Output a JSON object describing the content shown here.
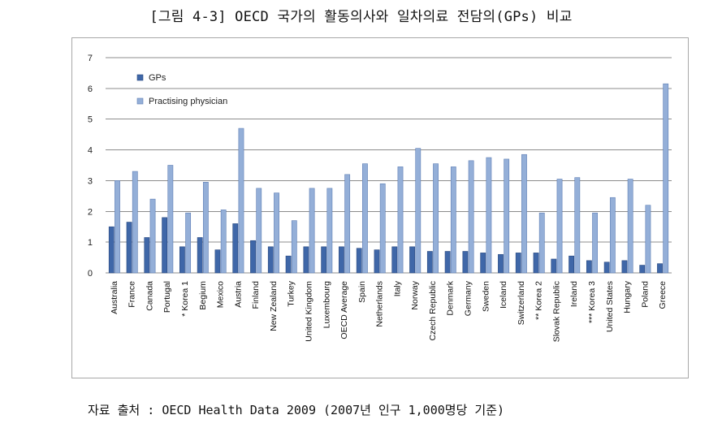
{
  "title": "[그림 4-3] OECD 국가의 활동의사와 일차의료 전담의(GPs) 비교",
  "source": "자료 출처 : OECD Health Data 2009 (2007년 인구 1,000명당 기준)",
  "colors": {
    "gps": "#3f67a8",
    "gps_stroke": "#2a4a80",
    "practising": "#94afd8",
    "practising_stroke": "#5f7fb5",
    "grid": "#8c8c8c",
    "frame": "#a8a8a8"
  },
  "chart_data": {
    "type": "bar",
    "title": "",
    "xlabel": "",
    "ylabel": "",
    "ylim": [
      0,
      7
    ],
    "yticks": [
      0,
      1,
      2,
      3,
      4,
      5,
      6,
      7
    ],
    "grid": true,
    "legend_position": "top-left",
    "categories": [
      "Australia",
      "France",
      "Canada",
      "Portugal",
      "* Korea 1",
      "Begium",
      "Mexico",
      "Austria",
      "Finland",
      "New Zealand",
      "Turkey",
      "United Kingdom",
      "Luxembourg",
      "OECD Average",
      "Spain",
      "Netherlands",
      "Italy",
      "Norway",
      "Czech Republic",
      "Denmark",
      "Germany",
      "Sweden",
      "Iceland",
      "Switzerland",
      "** Korea 2",
      "Slovak Republic",
      "Ireland",
      "*** Korea 3",
      "United States",
      "Hungary",
      "Poland",
      "Greece"
    ],
    "series": [
      {
        "name": "GPs",
        "values": [
          1.5,
          1.65,
          1.15,
          1.8,
          0.85,
          1.15,
          0.75,
          1.6,
          1.05,
          0.85,
          0.55,
          0.85,
          0.85,
          0.85,
          0.8,
          0.75,
          0.85,
          0.85,
          0.7,
          0.7,
          0.7,
          0.65,
          0.6,
          0.65,
          0.65,
          0.45,
          0.55,
          0.4,
          0.35,
          0.4,
          0.25,
          0.3
        ]
      },
      {
        "name": "Practising physician",
        "values": [
          3.0,
          3.3,
          2.4,
          3.5,
          1.95,
          2.95,
          2.05,
          4.7,
          2.75,
          2.6,
          1.7,
          2.75,
          2.75,
          3.2,
          3.55,
          2.9,
          3.45,
          4.05,
          3.55,
          3.45,
          3.65,
          3.75,
          3.7,
          3.85,
          1.95,
          3.05,
          3.1,
          1.95,
          2.45,
          3.05,
          2.2,
          6.15
        ]
      }
    ]
  }
}
